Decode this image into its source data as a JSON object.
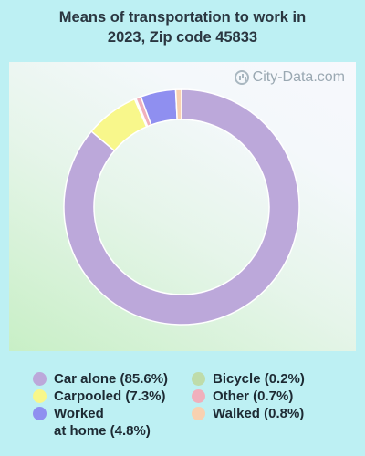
{
  "title_line1": "Means of transportation to work in",
  "title_line2": "2023, Zip code 45833",
  "watermark": "City-Data.com",
  "chart_data": {
    "type": "pie",
    "style": "donut",
    "title": "Means of transportation to work in 2023, Zip code 45833",
    "series": [
      {
        "name": "Car alone",
        "label": "Car alone (85.6%)",
        "value": 85.6,
        "color": "#bca8da"
      },
      {
        "name": "Carpooled",
        "label": "Carpooled (7.3%)",
        "value": 7.3,
        "color": "#f8f78b"
      },
      {
        "name": "Bicycle",
        "label": "Bicycle (0.2%)",
        "value": 0.2,
        "color": "#bfdcaa"
      },
      {
        "name": "Other",
        "label": "Other (0.7%)",
        "value": 0.7,
        "color": "#f0b0bc"
      },
      {
        "name": "Worked at home",
        "label": "Worked\nat home (4.8%)",
        "value": 4.8,
        "color": "#8f8ff0"
      },
      {
        "name": "Walked",
        "label": "Walked (0.8%)",
        "value": 0.8,
        "color": "#f8d1b0"
      }
    ],
    "legend_order": [
      "Car alone",
      "Carpooled",
      "Worked at home",
      "Bicycle",
      "Other",
      "Walked"
    ],
    "slice_order_clockwise_from_top": [
      "Car alone",
      "Carpooled",
      "Bicycle",
      "Other",
      "Worked at home",
      "Walked"
    ]
  }
}
